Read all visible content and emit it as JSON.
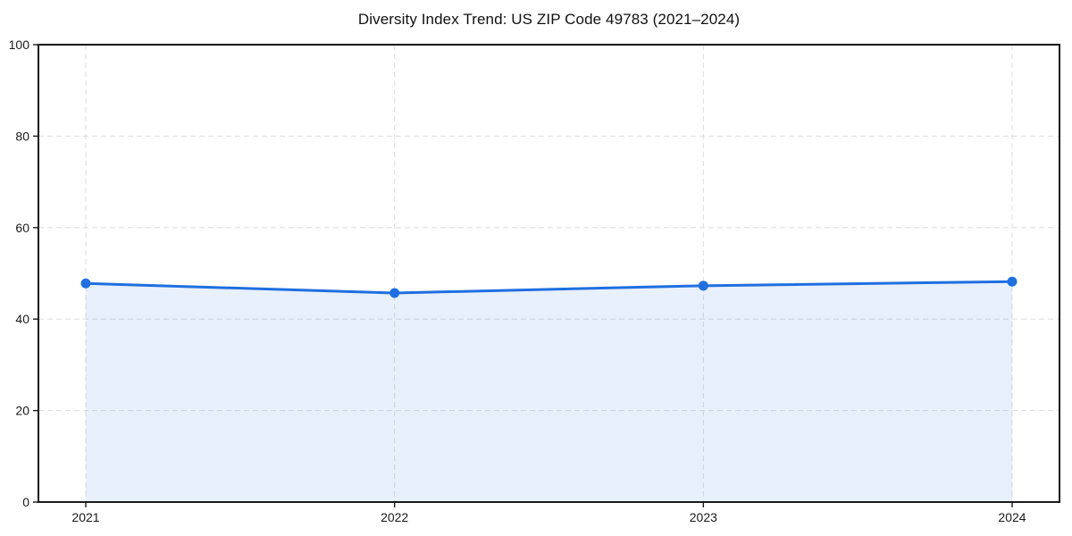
{
  "chart_data": {
    "type": "line",
    "title": "Diversity Index Trend: US ZIP Code 49783 (2021–2024)",
    "categories": [
      "2021",
      "2022",
      "2023",
      "2024"
    ],
    "series": [
      {
        "name": "Diversity Index",
        "values": [
          47.8,
          45.7,
          47.3,
          48.2
        ]
      }
    ],
    "xlabel": "",
    "ylabel": "",
    "ylim": [
      0,
      100
    ],
    "yticks": [
      0,
      20,
      40,
      60,
      80,
      100
    ],
    "grid": "dashed horizontal at yticks, dashed vertical at each year",
    "legend_position": "none",
    "area_fill": true,
    "marker": "circle",
    "colors": {
      "line": "#1f6fe0",
      "marker": "#1f6fe0",
      "area": "#1f6fe0",
      "area_opacity": "0.10",
      "grid": "#e0e0e0",
      "spine": "#1a1a1a",
      "tick_label": "#1a1a1a",
      "title": "#111111",
      "background": "#ffffff"
    }
  }
}
